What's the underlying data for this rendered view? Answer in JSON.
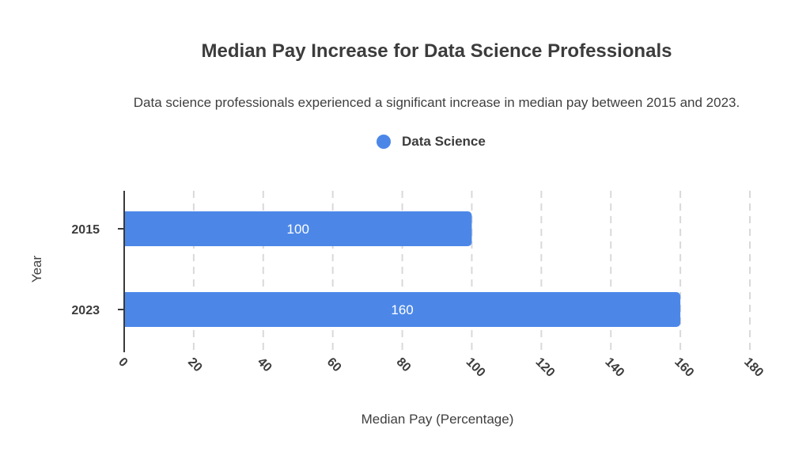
{
  "chart_data": {
    "type": "bar",
    "orientation": "horizontal",
    "title": "Median Pay Increase for Data Science Professionals",
    "subtitle": "Data science professionals experienced a significant increase in median pay between 2015 and 2023.",
    "categories": [
      "2015",
      "2023"
    ],
    "series": [
      {
        "name": "Data Science",
        "values": [
          100,
          160
        ],
        "color": "#4c87e8"
      }
    ],
    "xlabel": "Median Pay (Percentage)",
    "ylabel": "Year",
    "xlim": [
      0,
      180
    ],
    "xticks": [
      "0",
      "20",
      "40",
      "60",
      "80",
      "100",
      "120",
      "140",
      "160",
      "180"
    ],
    "data_labels": [
      "100",
      "160"
    ],
    "grid": "vertical dashed",
    "legend_position": "top"
  }
}
